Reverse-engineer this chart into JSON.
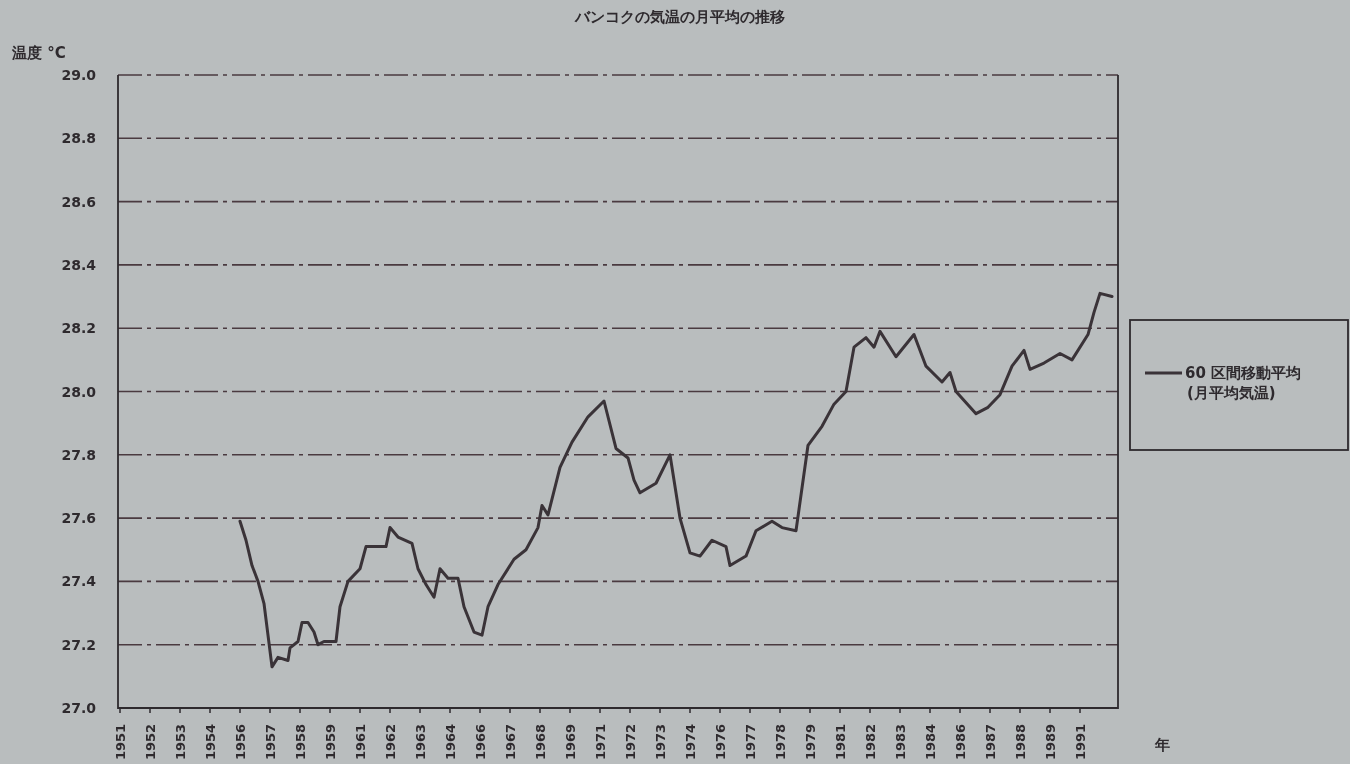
{
  "chart_data": {
    "type": "line",
    "title": "バンコクの気温の月平均の推移",
    "ylabel": "温度 °C",
    "xlabel": "年",
    "xlim": [
      "1950-12",
      "1992-08"
    ],
    "ylim": [
      27.0,
      29.0
    ],
    "yticks": [
      {
        "value": 27.0,
        "label": "27.0"
      },
      {
        "value": 27.2,
        "label": "27.2"
      },
      {
        "value": 27.4,
        "label": "27.4"
      },
      {
        "value": 27.6,
        "label": "27.6"
      },
      {
        "value": 27.8,
        "label": "27.8"
      },
      {
        "value": 28.0,
        "label": "28.0"
      },
      {
        "value": 28.2,
        "label": "28.2"
      },
      {
        "value": 28.4,
        "label": "28.4"
      },
      {
        "value": 28.6,
        "label": "28.6"
      },
      {
        "value": 28.8,
        "label": "28.8"
      },
      {
        "value": 29.0,
        "label": "29.0"
      }
    ],
    "xticks": [
      {
        "value": "1951-01",
        "label": "1951"
      },
      {
        "value": "1952-04",
        "label": "1952"
      },
      {
        "value": "1953-07",
        "label": "1953"
      },
      {
        "value": "1954-10",
        "label": "1954"
      },
      {
        "value": "1956-01",
        "label": "1956"
      },
      {
        "value": "1957-04",
        "label": "1957"
      },
      {
        "value": "1958-07",
        "label": "1958"
      },
      {
        "value": "1959-10",
        "label": "1959"
      },
      {
        "value": "1961-01",
        "label": "1961"
      },
      {
        "value": "1962-04",
        "label": "1962"
      },
      {
        "value": "1963-07",
        "label": "1963"
      },
      {
        "value": "1964-10",
        "label": "1964"
      },
      {
        "value": "1966-01",
        "label": "1966"
      },
      {
        "value": "1967-04",
        "label": "1967"
      },
      {
        "value": "1968-07",
        "label": "1968"
      },
      {
        "value": "1969-10",
        "label": "1969"
      },
      {
        "value": "1971-01",
        "label": "1971"
      },
      {
        "value": "1972-04",
        "label": "1972"
      },
      {
        "value": "1973-07",
        "label": "1973"
      },
      {
        "value": "1974-10",
        "label": "1974"
      },
      {
        "value": "1976-01",
        "label": "1976"
      },
      {
        "value": "1977-04",
        "label": "1977"
      },
      {
        "value": "1978-07",
        "label": "1978"
      },
      {
        "value": "1979-10",
        "label": "1979"
      },
      {
        "value": "1981-01",
        "label": "1981"
      },
      {
        "value": "1982-04",
        "label": "1982"
      },
      {
        "value": "1983-07",
        "label": "1983"
      },
      {
        "value": "1984-10",
        "label": "1984"
      },
      {
        "value": "1986-01",
        "label": "1986"
      },
      {
        "value": "1987-04",
        "label": "1987"
      },
      {
        "value": "1988-07",
        "label": "1988"
      },
      {
        "value": "1989-10",
        "label": "1989"
      },
      {
        "value": "1991-01",
        "label": "1991"
      }
    ],
    "grid": "y",
    "legend": "right",
    "marker": "none",
    "line_style": "solid",
    "series": [
      {
        "name": "60 区間移動平均\n(月平均気温)",
        "color": "#3a3338",
        "x": [
          "1956-01",
          "1956-04",
          "1956-07",
          "1956-10",
          "1957-01",
          "1957-05",
          "1957-08",
          "1958-01",
          "1958-02",
          "1958-06",
          "1958-08",
          "1958-11",
          "1959-02",
          "1959-04",
          "1959-07",
          "1960-01",
          "1960-03",
          "1960-07",
          "1961-01",
          "1961-04",
          "1961-09",
          "1962-02",
          "1962-04",
          "1962-08",
          "1963-03",
          "1963-06",
          "1963-10",
          "1964-02",
          "1964-05",
          "1964-09",
          "1965-02",
          "1965-05",
          "1965-10",
          "1966-02",
          "1966-05",
          "1966-10",
          "1967-06",
          "1967-12",
          "1968-06",
          "1968-08",
          "1968-11",
          "1969-05",
          "1969-11",
          "1970-07",
          "1971-03",
          "1971-09",
          "1972-03",
          "1972-06",
          "1972-09",
          "1973-05",
          "1973-12",
          "1974-05",
          "1974-10",
          "1975-03",
          "1975-09",
          "1976-04",
          "1976-06",
          "1977-02",
          "1977-07",
          "1978-03",
          "1978-08",
          "1979-03",
          "1979-09",
          "1980-04",
          "1980-10",
          "1981-04",
          "1981-08",
          "1982-02",
          "1982-06",
          "1982-09",
          "1983-05",
          "1984-02",
          "1984-08",
          "1985-04",
          "1985-08",
          "1985-11",
          "1986-09",
          "1987-03",
          "1987-09",
          "1988-03",
          "1988-09",
          "1988-12",
          "1989-07",
          "1990-03",
          "1990-09",
          "1991-05",
          "1991-08",
          "1991-11",
          "1992-05"
        ],
        "values": [
          27.59,
          27.53,
          27.45,
          27.4,
          27.33,
          27.13,
          27.16,
          27.15,
          27.19,
          27.21,
          27.27,
          27.27,
          27.24,
          27.2,
          27.21,
          27.21,
          27.32,
          27.4,
          27.44,
          27.51,
          27.51,
          27.51,
          27.57,
          27.54,
          27.52,
          27.44,
          27.39,
          27.35,
          27.44,
          27.41,
          27.41,
          27.32,
          27.24,
          27.23,
          27.32,
          27.39,
          27.47,
          27.5,
          27.57,
          27.64,
          27.61,
          27.76,
          27.84,
          27.92,
          27.97,
          27.82,
          27.79,
          27.72,
          27.68,
          27.71,
          27.8,
          27.6,
          27.49,
          27.48,
          27.53,
          27.51,
          27.45,
          27.48,
          27.56,
          27.59,
          27.57,
          27.56,
          27.83,
          27.89,
          27.96,
          28.0,
          28.14,
          28.17,
          28.14,
          28.19,
          28.11,
          28.18,
          28.08,
          28.03,
          28.06,
          28.0,
          27.93,
          27.95,
          27.99,
          28.08,
          28.13,
          28.07,
          28.09,
          28.12,
          28.1,
          28.18,
          28.25,
          28.31,
          28.3
        ]
      }
    ]
  }
}
